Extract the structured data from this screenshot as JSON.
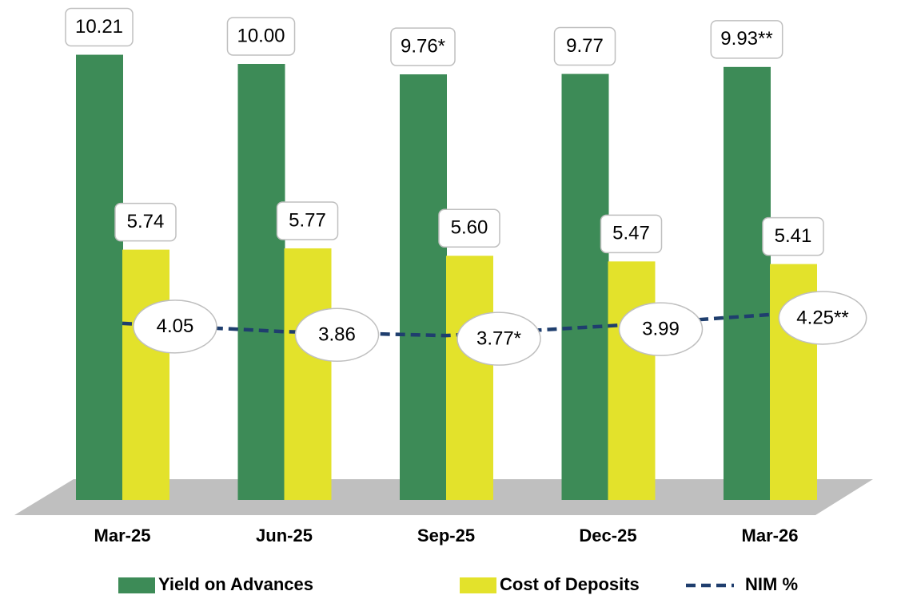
{
  "chart_data": {
    "type": "bar-line",
    "categories": [
      "Mar-25",
      "Jun-25",
      "Sep-25",
      "Dec-25",
      "Mar-26"
    ],
    "series": [
      {
        "name": "Yield on Advances",
        "color": "#3d8b57",
        "type": "bar",
        "values": [
          10.21,
          10.0,
          9.76,
          9.77,
          9.93
        ],
        "value_labels": [
          "10.21",
          "10.00",
          "9.76*",
          "9.77",
          "9.93**"
        ]
      },
      {
        "name": "Cost of Deposits",
        "color": "#e3e22b",
        "type": "bar",
        "values": [
          5.74,
          5.77,
          5.6,
          5.47,
          5.41
        ],
        "value_labels": [
          "5.74",
          "5.77",
          "5.60",
          "5.47",
          "5.41"
        ]
      },
      {
        "name": "NIM %",
        "color": "#1f3e6e",
        "type": "line",
        "values": [
          4.05,
          3.86,
          3.77,
          3.99,
          4.25
        ],
        "value_labels": [
          "4.05",
          "3.86",
          "3.77*",
          "3.99",
          "4.25**"
        ]
      }
    ],
    "legend": "bottom"
  }
}
